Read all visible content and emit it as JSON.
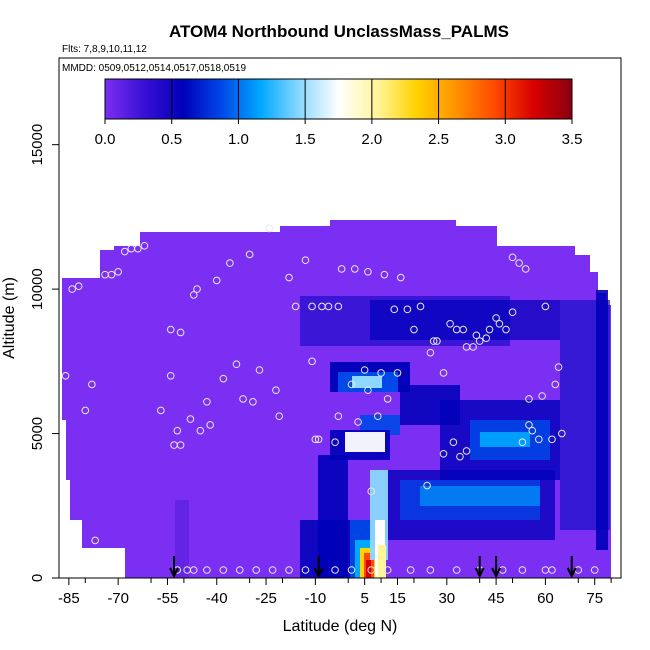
{
  "chart_data": {
    "type": "heatmap",
    "title": "ATOM4 Northbound UnclassMass_PALMS",
    "subtitle_flights": "Flts: 7,8,9,10,11,12",
    "subtitle_dates": "MMDD: 0509,0512,0514,0517,0518,0519",
    "xlabel": "Latitude (deg N)",
    "ylabel": "Altitude (m)",
    "xlim": [
      -88,
      83
    ],
    "ylim": [
      0,
      18000
    ],
    "x_ticks": [
      -85,
      -70,
      -55,
      -40,
      -25,
      -10,
      5,
      15,
      30,
      45,
      60,
      75
    ],
    "y_ticks": [
      0,
      5000,
      10000,
      15000
    ],
    "colorbar": {
      "min": 0.0,
      "max": 3.5,
      "ticks": [
        "0.0",
        "0.5",
        "1.0",
        "1.5",
        "2.0",
        "2.5",
        "3.0",
        "3.5"
      ],
      "colors": [
        "#7b2ff2",
        "#3a10d6",
        "#0000b8",
        "#0048e8",
        "#00a8ff",
        "#8cd8ff",
        "#ffffff",
        "#fff59a",
        "#ffd200",
        "#ff9400",
        "#ff4a00",
        "#d80000",
        "#8a0010"
      ]
    },
    "background_color": "#7b2ff2",
    "flight_profile_points": [
      [
        -86,
        7000
      ],
      [
        -84,
        10000
      ],
      [
        -82,
        10100
      ],
      [
        -80,
        5800
      ],
      [
        -78,
        6700
      ],
      [
        -77,
        1300
      ],
      [
        -74,
        10500
      ],
      [
        -72,
        10500
      ],
      [
        -70,
        10600
      ],
      [
        -68,
        11300
      ],
      [
        -66,
        11400
      ],
      [
        -64,
        11400
      ],
      [
        -62,
        11500
      ],
      [
        -57,
        5800
      ],
      [
        -54,
        7000
      ],
      [
        -54,
        8600
      ],
      [
        -53,
        4600
      ],
      [
        -52,
        5100
      ],
      [
        -51,
        8500
      ],
      [
        -51,
        4600
      ],
      [
        -48,
        5500
      ],
      [
        -47,
        9800
      ],
      [
        -46,
        10000
      ],
      [
        -45,
        5100
      ],
      [
        -43,
        6100
      ],
      [
        -42,
        5300
      ],
      [
        -40,
        10300
      ],
      [
        -38,
        6900
      ],
      [
        -36,
        10900
      ],
      [
        -34,
        7400
      ],
      [
        -32,
        6200
      ],
      [
        -30,
        11200
      ],
      [
        -29,
        6100
      ],
      [
        -27,
        7200
      ],
      [
        -24,
        12100
      ],
      [
        -22,
        6500
      ],
      [
        -21,
        5600
      ],
      [
        -18,
        10400
      ],
      [
        -16,
        9400
      ],
      [
        -13,
        11000
      ],
      [
        -11,
        9400
      ],
      [
        -11,
        7500
      ],
      [
        -10,
        4800
      ],
      [
        -9,
        4800
      ],
      [
        -8,
        9400
      ],
      [
        -6,
        9400
      ],
      [
        -4,
        4700
      ],
      [
        -3,
        5600
      ],
      [
        -3,
        9400
      ],
      [
        -2,
        10700
      ],
      [
        1,
        6700
      ],
      [
        2,
        10700
      ],
      [
        3,
        5400
      ],
      [
        5,
        7200
      ],
      [
        6,
        6500
      ],
      [
        6,
        10600
      ],
      [
        7,
        3000
      ],
      [
        9,
        5600
      ],
      [
        10,
        7100
      ],
      [
        11,
        10500
      ],
      [
        12,
        6200
      ],
      [
        14,
        9300
      ],
      [
        15,
        7100
      ],
      [
        16,
        10400
      ],
      [
        18,
        9300
      ],
      [
        20,
        8600
      ],
      [
        22,
        9400
      ],
      [
        24,
        3200
      ],
      [
        25,
        7800
      ],
      [
        26,
        8200
      ],
      [
        27,
        8200
      ],
      [
        29,
        4300
      ],
      [
        29,
        7100
      ],
      [
        31,
        8800
      ],
      [
        32,
        4700
      ],
      [
        33,
        8600
      ],
      [
        34,
        4200
      ],
      [
        35,
        8600
      ],
      [
        36,
        4400
      ],
      [
        36,
        8000
      ],
      [
        38,
        8000
      ],
      [
        39,
        8400
      ],
      [
        40,
        8200
      ],
      [
        42,
        8300
      ],
      [
        43,
        8600
      ],
      [
        45,
        9000
      ],
      [
        46,
        8800
      ],
      [
        48,
        8600
      ],
      [
        50,
        9200
      ],
      [
        50,
        11100
      ],
      [
        52,
        10900
      ],
      [
        53,
        4700
      ],
      [
        54,
        10700
      ],
      [
        55,
        6200
      ],
      [
        55,
        5300
      ],
      [
        56,
        5100
      ],
      [
        58,
        4800
      ],
      [
        59,
        6300
      ],
      [
        60,
        9400
      ],
      [
        62,
        4800
      ],
      [
        63,
        6700
      ],
      [
        64,
        7300
      ],
      [
        65,
        5000
      ]
    ],
    "surface_points": [
      -52,
      -49,
      -47,
      -43,
      -38,
      -33,
      -28,
      -23,
      -18,
      -13,
      -4,
      1,
      7,
      12,
      19,
      25,
      33,
      40,
      47,
      53,
      60,
      62,
      70,
      75
    ],
    "arrow_latitudes": [
      -53,
      -9,
      40,
      45,
      68
    ]
  }
}
